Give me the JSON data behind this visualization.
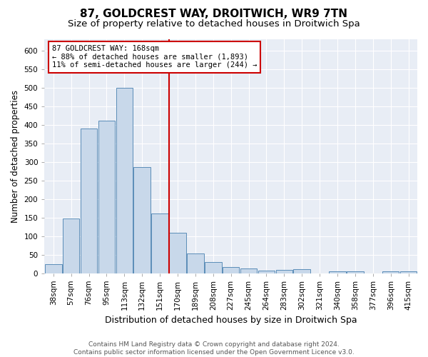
{
  "title": "87, GOLDCREST WAY, DROITWICH, WR9 7TN",
  "subtitle": "Size of property relative to detached houses in Droitwich Spa",
  "xlabel": "Distribution of detached houses by size in Droitwich Spa",
  "ylabel": "Number of detached properties",
  "categories": [
    "38sqm",
    "57sqm",
    "76sqm",
    "95sqm",
    "113sqm",
    "132sqm",
    "151sqm",
    "170sqm",
    "189sqm",
    "208sqm",
    "227sqm",
    "245sqm",
    "264sqm",
    "283sqm",
    "302sqm",
    "321sqm",
    "340sqm",
    "358sqm",
    "377sqm",
    "396sqm",
    "415sqm"
  ],
  "values": [
    25,
    148,
    390,
    410,
    500,
    285,
    160,
    108,
    53,
    30,
    16,
    12,
    7,
    9,
    10,
    0,
    4,
    4,
    0,
    5,
    4
  ],
  "bar_color": "#c8d8ea",
  "bar_edge_color": "#5b8db8",
  "vline_color": "#cc0000",
  "annotation_title": "87 GOLDCREST WAY: 168sqm",
  "annotation_line1": "← 88% of detached houses are smaller (1,893)",
  "annotation_line2": "11% of semi-detached houses are larger (244) →",
  "annotation_box_color": "#ffffff",
  "annotation_box_edge": "#cc0000",
  "ylim": [
    0,
    630
  ],
  "yticks": [
    0,
    50,
    100,
    150,
    200,
    250,
    300,
    350,
    400,
    450,
    500,
    550,
    600
  ],
  "fig_bg_color": "#ffffff",
  "plot_bg_color": "#e8edf5",
  "grid_color": "#ffffff",
  "footer": "Contains HM Land Registry data © Crown copyright and database right 2024.\nContains public sector information licensed under the Open Government Licence v3.0.",
  "title_fontsize": 11,
  "subtitle_fontsize": 9.5,
  "xlabel_fontsize": 9,
  "ylabel_fontsize": 8.5,
  "tick_fontsize": 7.5,
  "annot_fontsize": 7.5,
  "footer_fontsize": 6.5
}
